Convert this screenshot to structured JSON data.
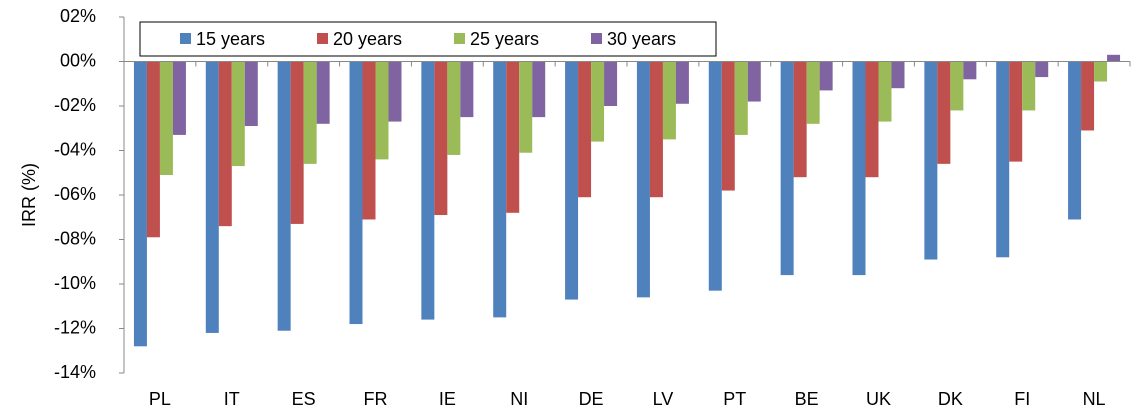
{
  "chart_data": {
    "type": "bar",
    "y_label": "IRR (%)",
    "categories": [
      "PL",
      "IT",
      "ES",
      "FR",
      "IE",
      "NI",
      "DE",
      "LV",
      "PT",
      "BE",
      "UK",
      "DK",
      "FI",
      "NL"
    ],
    "series": [
      {
        "name": "15 years",
        "color": "#4f81bd",
        "values": [
          -12.8,
          -12.2,
          -12.1,
          -11.8,
          -11.6,
          -11.5,
          -10.7,
          -10.6,
          -10.3,
          -9.6,
          -9.6,
          -8.9,
          -8.8,
          -7.1
        ]
      },
      {
        "name": "20 years",
        "color": "#c0504d",
        "values": [
          -7.9,
          -7.4,
          -7.3,
          -7.1,
          -6.9,
          -6.8,
          -6.1,
          -6.1,
          -5.8,
          -5.2,
          -5.2,
          -4.6,
          -4.5,
          -3.1
        ]
      },
      {
        "name": "25 years",
        "color": "#9bbb59",
        "values": [
          -5.1,
          -4.7,
          -4.6,
          -4.4,
          -4.2,
          -4.1,
          -3.6,
          -3.5,
          -3.3,
          -2.8,
          -2.7,
          -2.2,
          -2.2,
          -0.9
        ]
      },
      {
        "name": "30 years",
        "color": "#8064a2",
        "values": [
          -3.3,
          -2.9,
          -2.8,
          -2.7,
          -2.5,
          -2.5,
          -2.0,
          -1.9,
          -1.8,
          -1.3,
          -1.2,
          -0.8,
          -0.7,
          0.3
        ]
      }
    ],
    "ylim": [
      -14,
      2
    ],
    "yticks": [
      {
        "value": 2,
        "label": "02%"
      },
      {
        "value": 0,
        "label": "00%"
      },
      {
        "value": -2,
        "label": "-02%"
      },
      {
        "value": -4,
        "label": "-04%"
      },
      {
        "value": -6,
        "label": "-06%"
      },
      {
        "value": -8,
        "label": "-08%"
      },
      {
        "value": -10,
        "label": "-10%"
      },
      {
        "value": -12,
        "label": "-12%"
      },
      {
        "value": -14,
        "label": "-14%"
      }
    ],
    "grid": false,
    "legend": "top"
  }
}
